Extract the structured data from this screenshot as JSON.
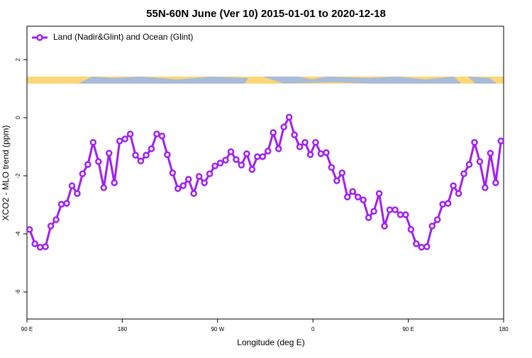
{
  "chart_data": {
    "type": "line",
    "title": "55N-60N June (Ver 10)   2015-01-01 to 2020-12-18",
    "x_label": "Longitude (deg E)",
    "y_label": "XCO2 - MLO trend (ppm)",
    "x": [
      92.5,
      97.5,
      102.5,
      107.5,
      112.5,
      117.5,
      122.5,
      127.5,
      132.5,
      137.5,
      142.5,
      147.5,
      152.5,
      157.5,
      162.5,
      167.5,
      172.5,
      177.5,
      182.5,
      187.5,
      192.5,
      197.5,
      202.5,
      207.5,
      212.5,
      217.5,
      222.5,
      227.5,
      232.5,
      237.5,
      242.5,
      247.5,
      252.5,
      257.5,
      262.5,
      267.5,
      272.5,
      277.5,
      282.5,
      287.5,
      292.5,
      297.5,
      302.5,
      307.5,
      312.5,
      317.5,
      322.5,
      327.5,
      332.5,
      337.5,
      342.5,
      347.5,
      352.5,
      357.5,
      362.5,
      367.5,
      372.5,
      377.5,
      382.5,
      387.5,
      392.5,
      397.5,
      402.5,
      407.5,
      412.5,
      417.5,
      422.5,
      427.5,
      432.5,
      437.5,
      442.5,
      447.5,
      452.5,
      457.5,
      462.5,
      467.5,
      472.5,
      477.5,
      482.5,
      487.5,
      492.5,
      497.5,
      502.5,
      507.5,
      512.5,
      517.5,
      522.5,
      527.5,
      532.5,
      537.5
    ],
    "series": [
      {
        "name": "Land (Nadir&Glint) and Ocean (Glint)",
        "color": "#a020f0",
        "values": [
          -3.85,
          -4.34,
          -4.46,
          -4.44,
          -3.73,
          -3.51,
          -2.98,
          -2.95,
          -2.34,
          -2.61,
          -1.93,
          -1.61,
          -0.85,
          -1.51,
          -2.41,
          -1.22,
          -2.24,
          -0.8,
          -0.73,
          -0.56,
          -1.29,
          -1.49,
          -1.29,
          -1.07,
          -0.56,
          -0.63,
          -1.27,
          -1.9,
          -2.44,
          -2.34,
          -2.12,
          -2.61,
          -2.02,
          -2.24,
          -1.93,
          -1.66,
          -1.56,
          -1.46,
          -1.17,
          -1.44,
          -1.63,
          -1.24,
          -1.78,
          -1.34,
          -1.34,
          -1.15,
          -0.51,
          -1.07,
          -0.32,
          0.02,
          -0.59,
          -1.0,
          -0.85,
          -1.27,
          -0.85,
          -1.24,
          -1.2,
          -1.71,
          -2.17,
          -1.9,
          -2.73,
          -2.54,
          -2.73,
          -2.83,
          -3.44,
          -3.22,
          -2.61,
          -3.73,
          -3.17,
          -3.17,
          -3.34,
          -3.34,
          -3.85,
          -4.34,
          -4.46,
          -4.44,
          -3.73,
          -3.51,
          -2.98,
          -2.95,
          -2.34,
          -2.61,
          -1.93,
          -1.61,
          -0.85,
          -1.51,
          -2.41,
          -1.22,
          -2.24,
          -0.8
        ]
      }
    ],
    "xlim": [
      90,
      540
    ],
    "xticks": [
      {
        "value": 90,
        "label": "90 E"
      },
      180,
      {
        "value": 270,
        "label": "90 W"
      },
      {
        "value": 360,
        "label": "0"
      },
      {
        "value": 450,
        "label": "90 E"
      },
      180
    ],
    "ylim": [
      -6.93,
      3.15
    ],
    "yticks": [
      2,
      0,
      -2,
      -4,
      -6
    ],
    "legend": "top-left"
  }
}
